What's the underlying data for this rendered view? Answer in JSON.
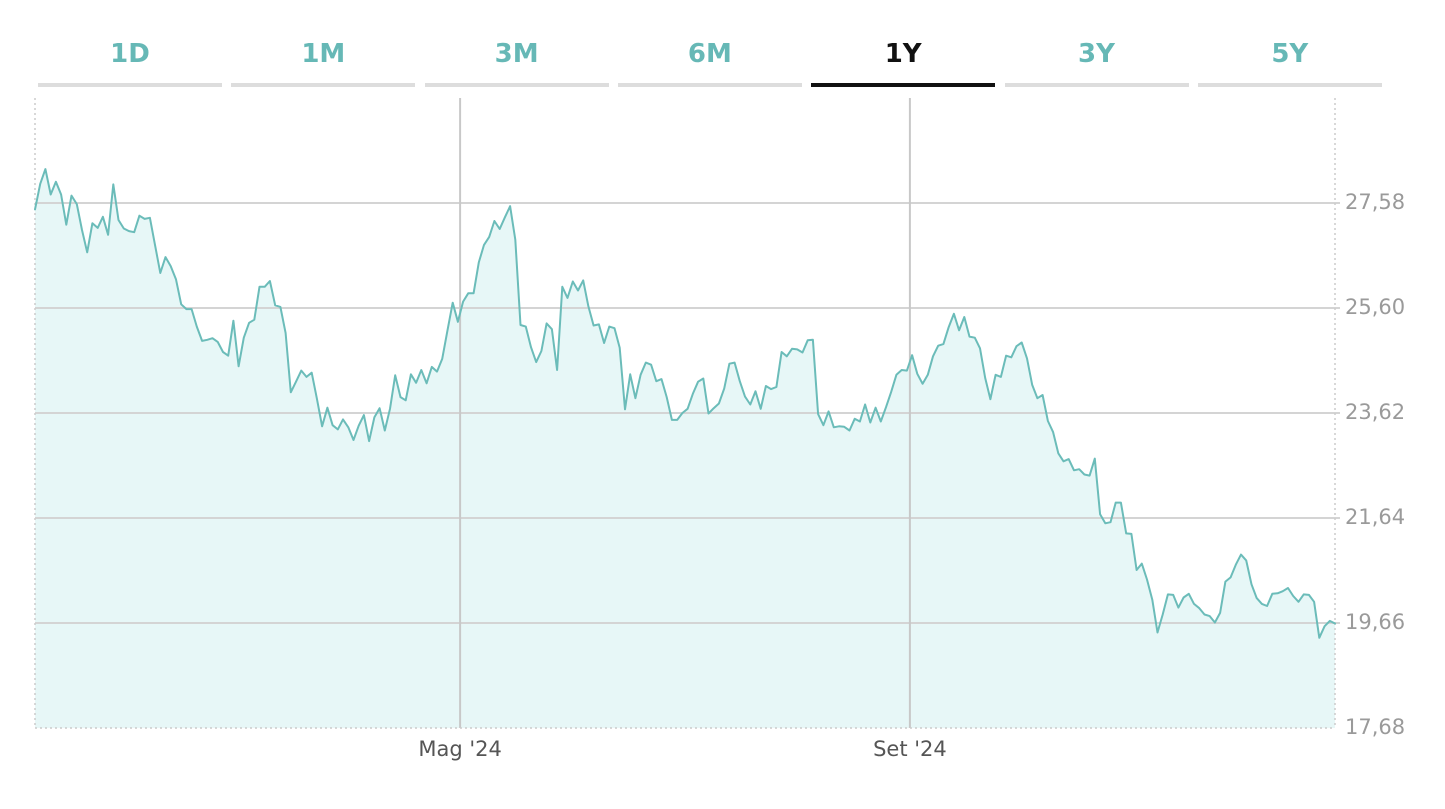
{
  "tabs": [
    {
      "label": "1D",
      "active": false
    },
    {
      "label": "1M",
      "active": false
    },
    {
      "label": "3M",
      "active": false
    },
    {
      "label": "6M",
      "active": false
    },
    {
      "label": "1Y",
      "active": true
    },
    {
      "label": "3Y",
      "active": false
    },
    {
      "label": "5Y",
      "active": false
    }
  ],
  "colors": {
    "accent": "#66b8b6",
    "line": "#6bbcb9",
    "fill": "#e7f7f7",
    "grid": "#d4d4d4",
    "active_tab": "#111111",
    "inactive_bar": "#dddddd"
  },
  "chart_data": {
    "type": "area",
    "title": "",
    "xlabel": "",
    "ylabel": "",
    "ylim": [
      17.68,
      29.6
    ],
    "y_ticks": [
      "17,68",
      "19,66",
      "21,64",
      "23,62",
      "25,60",
      "27,58"
    ],
    "y_tick_values": [
      17.68,
      19.66,
      21.64,
      23.62,
      25.6,
      27.58
    ],
    "x_ticks": [
      "Mag '24",
      "Set '24"
    ],
    "x_tick_positions": [
      0.327,
      0.673
    ],
    "grid": true,
    "series": [
      {
        "values": [
          27.46,
          27.94,
          28.22,
          27.74,
          27.98,
          27.74,
          27.17,
          27.72,
          27.56,
          27.07,
          26.65,
          27.2,
          27.11,
          27.32,
          26.98,
          27.93,
          27.26,
          27.1,
          27.05,
          27.03,
          27.34,
          27.28,
          27.3,
          26.78,
          26.26,
          26.56,
          26.39,
          26.14,
          25.67,
          25.58,
          25.58,
          25.25,
          24.98,
          25.0,
          25.03,
          24.96,
          24.77,
          24.7,
          25.36,
          24.5,
          25.04,
          25.32,
          25.38,
          26.0,
          26.0,
          26.11,
          25.65,
          25.62,
          25.13,
          24.01,
          24.21,
          24.42,
          24.3,
          24.38,
          23.89,
          23.37,
          23.72,
          23.39,
          23.31,
          23.5,
          23.35,
          23.11,
          23.38,
          23.58,
          23.09,
          23.54,
          23.71,
          23.29,
          23.7,
          24.33,
          23.92,
          23.86,
          24.35,
          24.19,
          24.43,
          24.18,
          24.49,
          24.4,
          24.64,
          25.17,
          25.7,
          25.34,
          25.72,
          25.88,
          25.88,
          26.46,
          26.79,
          26.94,
          27.24,
          27.09,
          27.31,
          27.52,
          26.89,
          25.28,
          25.25,
          24.86,
          24.58,
          24.79,
          25.31,
          25.2,
          24.43,
          26.0,
          25.79,
          26.1,
          25.93,
          26.12,
          25.63,
          25.27,
          25.29,
          24.94,
          25.25,
          25.22,
          24.85,
          23.69,
          24.35,
          23.9,
          24.34,
          24.57,
          24.53,
          24.22,
          24.26,
          23.92,
          23.49,
          23.49,
          23.62,
          23.7,
          23.98,
          24.21,
          24.27,
          23.61,
          23.71,
          23.8,
          24.08,
          24.55,
          24.57,
          24.22,
          23.93,
          23.78,
          24.03,
          23.7,
          24.13,
          24.07,
          24.11,
          24.77,
          24.69,
          24.83,
          24.82,
          24.76,
          24.99,
          25.0,
          23.6,
          23.39,
          23.65,
          23.35,
          23.37,
          23.36,
          23.29,
          23.51,
          23.46,
          23.78,
          23.44,
          23.72,
          23.46,
          23.73,
          24.02,
          24.34,
          24.43,
          24.42,
          24.71,
          24.36,
          24.17,
          24.34,
          24.69,
          24.89,
          24.92,
          25.24,
          25.49,
          25.18,
          25.43,
          25.06,
          25.04,
          24.84,
          24.28,
          23.88,
          24.34,
          24.3,
          24.7,
          24.67,
          24.88,
          24.95,
          24.65,
          24.15,
          23.9,
          23.96,
          23.47,
          23.26,
          22.86,
          22.71,
          22.75,
          22.54,
          22.56,
          22.46,
          22.44,
          22.76,
          21.71,
          21.54,
          21.56,
          21.93,
          21.93,
          21.35,
          21.34,
          20.66,
          20.78,
          20.48,
          20.1,
          19.48,
          19.82,
          20.2,
          20.19,
          19.95,
          20.14,
          20.21,
          20.02,
          19.94,
          19.82,
          19.79,
          19.67,
          19.85,
          20.44,
          20.52,
          20.76,
          20.95,
          20.84,
          20.39,
          20.13,
          20.02,
          19.98,
          20.21,
          20.22,
          20.26,
          20.32,
          20.17,
          20.06,
          20.2,
          20.19,
          20.06,
          19.38,
          19.6,
          19.7,
          19.65
        ]
      }
    ]
  }
}
